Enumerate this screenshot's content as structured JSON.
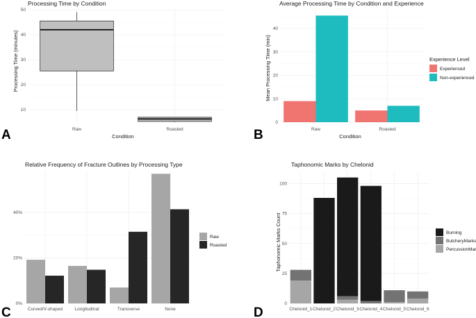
{
  "panel_labels": [
    "A",
    "B",
    "C",
    "D"
  ],
  "chart_data": [
    {
      "id": "A",
      "type": "boxplot",
      "title": "Processing Time by Condition",
      "xlabel": "Condition",
      "ylabel": "Processing Time (minutes)",
      "ylim": [
        5,
        50
      ],
      "yticks": [
        "10",
        "20",
        "30",
        "40",
        "50"
      ],
      "categories": [
        "Raw",
        "Roasted"
      ],
      "boxes": [
        {
          "category": "Raw",
          "min": 9.5,
          "q1": 25.5,
          "median": 42,
          "q3": 45.5,
          "max": 49
        },
        {
          "category": "Roasted",
          "min": 5,
          "q1": 5.3,
          "median": 6.3,
          "q3": 7,
          "max": 7
        }
      ],
      "colors": {
        "box": "#bfbfbf"
      }
    },
    {
      "id": "B",
      "type": "bar",
      "title": "Average Processing Time by Condition and Experience",
      "xlabel": "Condition",
      "ylabel": "Mean Processing Time (min)",
      "ylim": [
        0,
        48
      ],
      "yticks": [
        "0",
        "10",
        "20",
        "30",
        "40"
      ],
      "categories": [
        "Raw",
        "Roasted"
      ],
      "series": [
        {
          "name": "Experienced",
          "values": [
            9,
            5
          ]
        },
        {
          "name": "Non-experienced",
          "values": [
            45.5,
            7
          ]
        }
      ],
      "legend_title": "Experience Level",
      "colors": {
        "Experienced": "#f07470",
        "Non-experienced": "#1fbcbf"
      }
    },
    {
      "id": "C",
      "type": "bar",
      "title": "Relative Frequency of Fracture Outlines by Processing Type",
      "xlabel": "",
      "ylabel": "",
      "ylim": [
        0,
        58
      ],
      "yticks": [
        "0%",
        "20%",
        "40%"
      ],
      "categories": [
        "Curved/V-shaped",
        "Longitudinal",
        "Transverse",
        "None"
      ],
      "series": [
        {
          "name": "Raw",
          "values": [
            19.2,
            16.5,
            7.0,
            57.0
          ]
        },
        {
          "name": "Roasted",
          "values": [
            12.2,
            14.8,
            31.5,
            41.4
          ]
        }
      ],
      "colors": {
        "Raw": "#a6a6a6",
        "Roasted": "#262626"
      }
    },
    {
      "id": "D",
      "type": "stacked-bar",
      "title": "Taphonomic Marks by Chelonid",
      "xlabel": "",
      "ylabel": "Taphonomic Marks Count",
      "ylim": [
        0,
        110
      ],
      "yticks": [
        "0",
        "25",
        "50",
        "75",
        "100"
      ],
      "categories": [
        "Chelonid_1",
        "Chelonid_2",
        "Chelonid_3",
        "Chelonid_4",
        "Chelonid_5",
        "Chelonid_6"
      ],
      "series": [
        {
          "name": "PercussionMarks",
          "values": [
            19,
            0,
            3,
            0,
            1,
            4
          ]
        },
        {
          "name": "ButcheryMarks",
          "values": [
            9,
            0,
            3,
            2,
            10,
            6
          ]
        },
        {
          "name": "Burning",
          "values": [
            0,
            88,
            99,
            96,
            0,
            0
          ]
        }
      ],
      "legend_order": [
        "Burning",
        "ButcheryMarks",
        "PercussionMarks"
      ],
      "colors": {
        "Burning": "#1a1a1a",
        "ButcheryMarks": "#737373",
        "PercussionMarks": "#a6a6a6"
      }
    }
  ]
}
